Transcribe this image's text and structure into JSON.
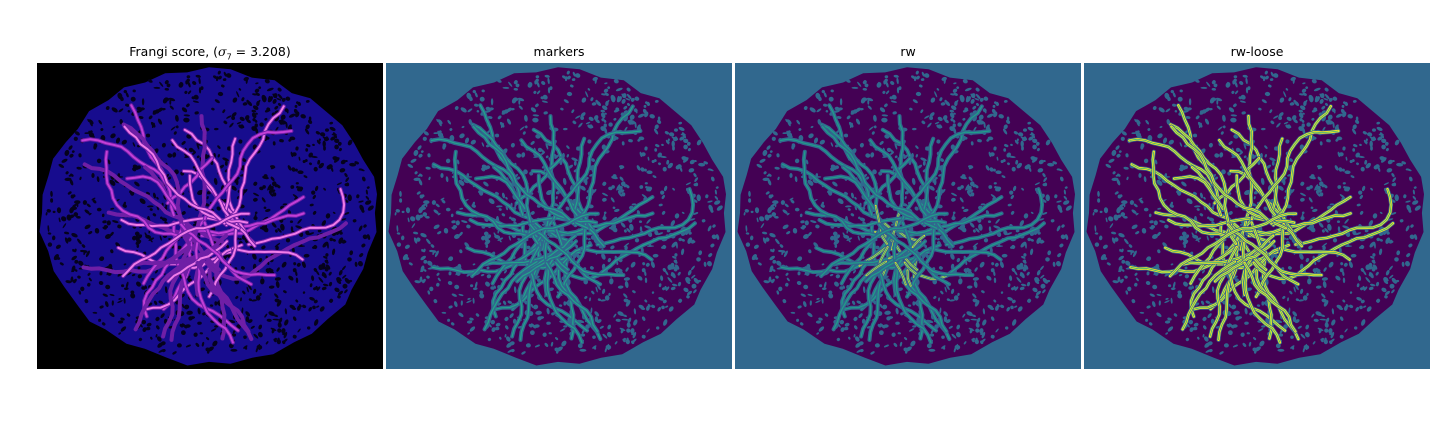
{
  "figure": {
    "panels": [
      {
        "title_prefix": "Frangi score, (",
        "title_symbol": "σ",
        "title_subscript": "7",
        "title_suffix": " = 3.208)",
        "background": "#000000",
        "tissue_color": "#170c8e",
        "hole_color": "#05021c",
        "vessel_colors": [
          "#6f1fa6",
          "#c33fd7",
          "#f07ce8"
        ]
      },
      {
        "title": "markers",
        "background": "#31688e",
        "tissue_color": "#440154",
        "vessel_color": "#21a58a"
      },
      {
        "title": "rw",
        "background": "#31688e",
        "tissue_color": "#440154",
        "vessel_color": "#1f9e89",
        "highlight_color": "#fde725"
      },
      {
        "title": "rw-loose",
        "background": "#31688e",
        "tissue_color": "#440154",
        "vessel_color": "#35b779",
        "highlight_color": "#fde725"
      }
    ]
  }
}
